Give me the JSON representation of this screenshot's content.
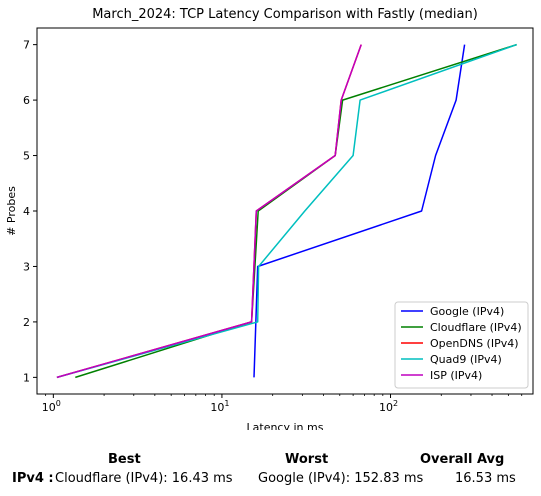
{
  "chart_data": {
    "type": "line",
    "title": "March_2024: TCP Latency Comparison with Fastly (median)",
    "xlabel": "Latency in ms",
    "ylabel": "# Probes",
    "xscale": "log",
    "xlim": [
      0.8,
      700
    ],
    "ylim": [
      0.7,
      7.3
    ],
    "x_ticks": [
      {
        "value": 1,
        "label": "10",
        "exp": "0"
      },
      {
        "value": 10,
        "label": "10",
        "exp": "1"
      },
      {
        "value": 100,
        "label": "10",
        "exp": "2"
      }
    ],
    "y_ticks": [
      1,
      2,
      3,
      4,
      5,
      6,
      7
    ],
    "legend_position": "lower-right",
    "grid": false,
    "series": [
      {
        "name": "Google (IPv4)",
        "color": "#0000ff",
        "points": [
          [
            15.5,
            1
          ],
          [
            16.3,
            3
          ],
          [
            152.8,
            4
          ],
          [
            185,
            5
          ],
          [
            245,
            6
          ],
          [
            275,
            7
          ]
        ]
      },
      {
        "name": "Cloudflare (IPv4)",
        "color": "#008000",
        "points": [
          [
            1.35,
            1
          ],
          [
            15.0,
            2
          ],
          [
            16.4,
            4
          ],
          [
            47,
            5
          ],
          [
            52,
            6
          ],
          [
            560,
            7
          ]
        ]
      },
      {
        "name": "OpenDNS (IPv4)",
        "color": "#ff0000",
        "points": [
          [
            1.05,
            1
          ],
          [
            15.0,
            2
          ],
          [
            16.0,
            4
          ],
          [
            47,
            5
          ],
          [
            51,
            6
          ],
          [
            67,
            7
          ]
        ]
      },
      {
        "name": "Quad9 (IPv4)",
        "color": "#00bfbf",
        "points": [
          [
            1.05,
            1
          ],
          [
            16.3,
            2
          ],
          [
            16.5,
            3
          ],
          [
            31,
            4
          ],
          [
            60,
            5
          ],
          [
            66,
            6
          ],
          [
            560,
            7
          ]
        ]
      },
      {
        "name": "ISP (IPv4)",
        "color": "#bf00bf",
        "points": [
          [
            1.05,
            1
          ],
          [
            15.0,
            2
          ],
          [
            16.0,
            4
          ],
          [
            47,
            5
          ],
          [
            51,
            6
          ],
          [
            67,
            7
          ]
        ]
      }
    ]
  },
  "summary": {
    "best_header": "Best",
    "worst_header": "Worst",
    "avg_header": "Overall Avg",
    "row_label": "IPv4 :",
    "best_value": "Cloudflare (IPv4): 16.43 ms",
    "worst_value": "Google (IPv4): 152.83 ms",
    "avg_value": "16.53 ms"
  }
}
